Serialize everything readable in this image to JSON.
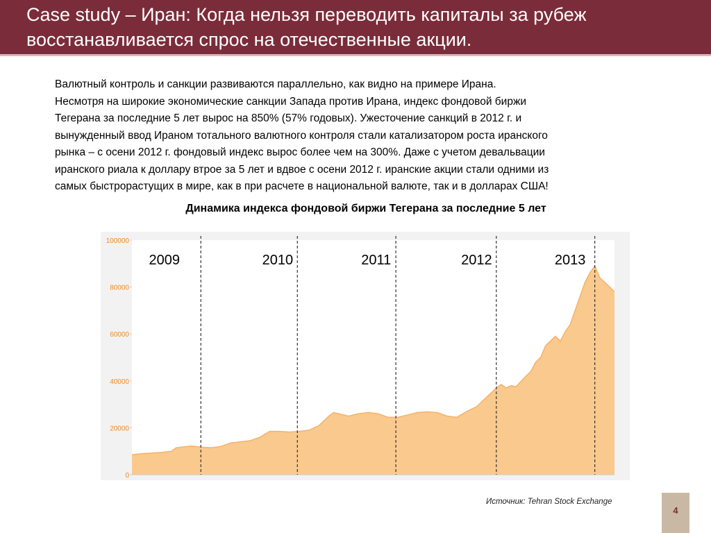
{
  "slide": {
    "title_line1": "Case study – Иран: Когда нельзя переводить капиталы за рубеж",
    "title_line2": "восстанавливается спрос на отечественные акции.",
    "body_lines": [
      "Валютный контроль  и санкции развиваются параллельно, как видно на примере Ирана.",
      "Несмотря на широкие экономические санкции Запада против Ирана, индекс фондовой биржи",
      "Тегерана за последние 5 лет вырос на 850% (57% годовых).  Ужесточение санкций в 2012 г. и",
      "вынужденный ввод Ираном тотального валютного контроля стали катализатором роста иранского",
      "рынка – с осени 2012 г. фондовый индекс вырос более чем на 300%. Даже с учетом девальвации",
      "иранского риала к доллару втрое за 5 лет и вдвое с осени 2012 г. иранские акции стали одними из",
      "самых быстрорастущих в мире, как в при расчете в национальной валюте, так и в долларах США!"
    ],
    "source": "Источник: Tehran Stock Exchange",
    "page_number": "4",
    "colors": {
      "title_bg": "#7b2c3a",
      "area_fill": "#f9c98e",
      "area_line": "#f5b26b",
      "page_box": "#c9b9a4"
    }
  },
  "chart_data": {
    "type": "area",
    "title": "Динамика индекса фондовой биржи Тегерана за последние 5 лет",
    "xlabel": "",
    "ylabel": "",
    "ylim": [
      0,
      100000
    ],
    "yticks": [
      0,
      20000,
      40000,
      60000,
      80000,
      100000
    ],
    "xlim": [
      2009.0,
      2013.9
    ],
    "year_labels": [
      "2009",
      "2010",
      "2011",
      "2012",
      "2013"
    ],
    "year_label_positions": [
      2009.33,
      2010.48,
      2011.48,
      2012.5,
      2013.45
    ],
    "year_dividers": [
      2009.7,
      2010.68,
      2011.68,
      2012.7,
      2013.7
    ],
    "grid": false,
    "legend": "none",
    "series": [
      {
        "x": [
          2009.0,
          2009.1,
          2009.2,
          2009.3,
          2009.4,
          2009.45,
          2009.55,
          2009.6,
          2009.7,
          2009.8,
          2009.9,
          2010.0,
          2010.1,
          2010.2,
          2010.3,
          2010.4,
          2010.5,
          2010.6,
          2010.7,
          2010.8,
          2010.9,
          2011.0,
          2011.05,
          2011.1,
          2011.15,
          2011.2,
          2011.3,
          2011.4,
          2011.5,
          2011.6,
          2011.7,
          2011.8,
          2011.9,
          2012.0,
          2012.1,
          2012.2,
          2012.3,
          2012.4,
          2012.5,
          2012.6,
          2012.7,
          2012.75,
          2012.8,
          2012.85,
          2012.9,
          2013.0,
          2013.05,
          2013.1,
          2013.15,
          2013.2,
          2013.25,
          2013.3,
          2013.35,
          2013.4,
          2013.45,
          2013.5,
          2013.55,
          2013.6,
          2013.65,
          2013.7,
          2013.75,
          2013.8,
          2013.85,
          2013.9
        ],
        "values": [
          8500,
          9000,
          9200,
          9500,
          10000,
          11500,
          12000,
          12200,
          11800,
          11500,
          12000,
          13500,
          14000,
          14500,
          16000,
          18500,
          18500,
          18200,
          18500,
          19000,
          21000,
          25000,
          26500,
          26000,
          25500,
          25000,
          26000,
          26500,
          26000,
          24500,
          24500,
          25500,
          26500,
          26800,
          26500,
          25000,
          24500,
          27000,
          29000,
          33000,
          37000,
          38500,
          37000,
          38000,
          37500,
          42000,
          44000,
          48000,
          50000,
          55000,
          57000,
          59000,
          57000,
          61000,
          64000,
          70000,
          76000,
          82000,
          86000,
          89000,
          84000,
          82000,
          80000,
          78000
        ]
      }
    ]
  }
}
